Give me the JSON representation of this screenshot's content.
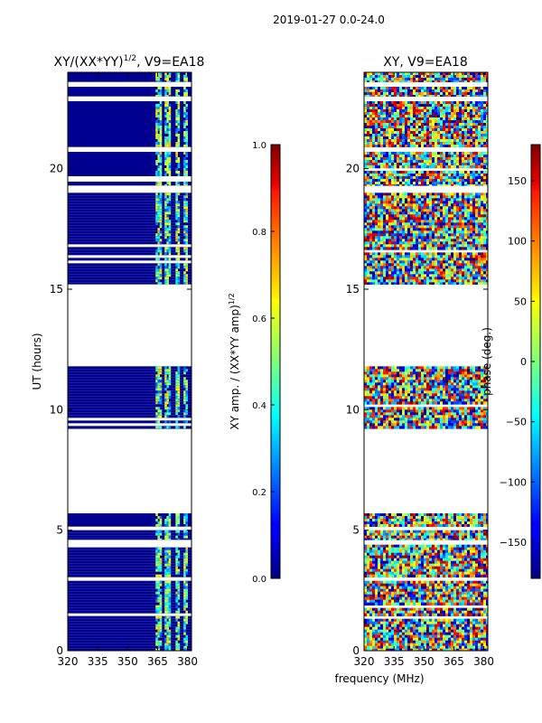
{
  "figure": {
    "suptitle": "2019-01-27 0.0-24.0",
    "shared_xlabel": "frequency (MHz)"
  },
  "chart_data": [
    {
      "type": "heatmap",
      "title": "XY/(XX*YY)",
      "title_sup": "1/2",
      "title_suffix": ", V9=EA18",
      "xlabel": "",
      "ylabel": "UT (hours)",
      "xlim": [
        320,
        382
      ],
      "ylim": [
        0,
        24
      ],
      "xticks": [
        320,
        335,
        350,
        365,
        380
      ],
      "yticks": [
        0,
        5,
        10,
        15,
        20
      ],
      "colormap": "jet",
      "clim": [
        0,
        1
      ],
      "colorbar_label": "XY amp. / (XX*YY amp)",
      "colorbar_label_sup": "1/2",
      "colorbar_ticks": [
        "0.0",
        "0.2",
        "0.4",
        "0.6",
        "0.8",
        "1.0"
      ],
      "data_bands_ut": [
        [
          0,
          2.9
        ],
        [
          3.05,
          4.4
        ],
        [
          4.6,
          5.0
        ],
        [
          5.15,
          5.7
        ],
        [
          9.2,
          11.8
        ],
        [
          15.2,
          19.0
        ],
        [
          19.3,
          20.7
        ],
        [
          20.9,
          22.8
        ],
        [
          23.0,
          23.4
        ],
        [
          23.6,
          24
        ]
      ],
      "bright_channels_mhz": [
        [
          364,
          367
        ],
        [
          368.5,
          371
        ],
        [
          374,
          376
        ],
        [
          378,
          379.5
        ]
      ]
    },
    {
      "type": "heatmap",
      "title": "XY, V9=EA18",
      "xlabel": "frequency (MHz)",
      "ylabel": "",
      "xlim": [
        320,
        382
      ],
      "ylim": [
        0,
        24
      ],
      "xticks": [
        320,
        335,
        350,
        365,
        380
      ],
      "yticks": [
        0,
        5,
        10,
        15,
        20
      ],
      "colormap": "jet",
      "clim": [
        -180,
        180
      ],
      "colorbar_label": "phase (deg.)",
      "colorbar_ticks": [
        "150",
        "100",
        "50",
        "0",
        "−50",
        "−100",
        "−150"
      ],
      "colorbar_tick_values": [
        150,
        100,
        50,
        0,
        -50,
        -100,
        -150
      ],
      "data_bands_ut": [
        [
          0,
          2.9
        ],
        [
          3.05,
          4.4
        ],
        [
          4.6,
          5.0
        ],
        [
          5.15,
          5.7
        ],
        [
          9.2,
          11.8
        ],
        [
          15.2,
          19.0
        ],
        [
          19.3,
          20.7
        ],
        [
          20.9,
          22.8
        ],
        [
          23.0,
          23.4
        ],
        [
          23.6,
          24
        ]
      ]
    }
  ]
}
